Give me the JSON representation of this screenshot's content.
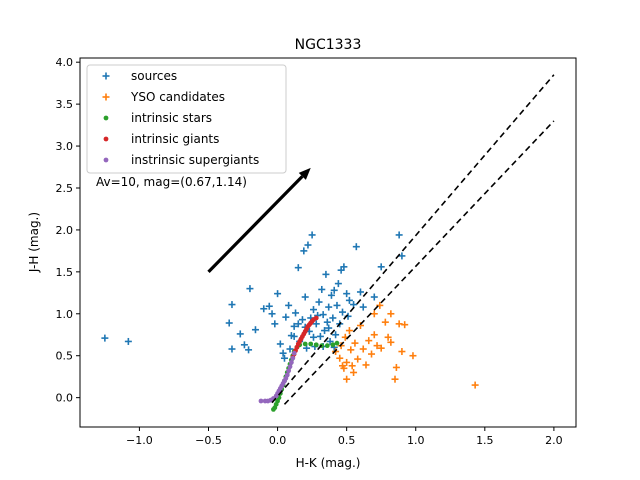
{
  "chart_data": {
    "type": "scatter",
    "title": "NGC1333",
    "xlabel": "H-K (mag.)",
    "ylabel": "J-H (mag.)",
    "xlim": [
      -1.43,
      2.16
    ],
    "ylim": [
      -0.35,
      4.05
    ],
    "xticks": [
      -1.0,
      -0.5,
      0.0,
      0.5,
      1.0,
      1.5,
      2.0
    ],
    "xtick_labels": [
      "−1.0",
      "−0.5",
      "0.0",
      "0.5",
      "1.0",
      "1.5",
      "2.0"
    ],
    "yticks": [
      0.0,
      0.5,
      1.0,
      1.5,
      2.0,
      2.5,
      3.0,
      3.5,
      4.0
    ],
    "ytick_labels": [
      "0.0",
      "0.5",
      "1.0",
      "1.5",
      "2.0",
      "2.5",
      "3.0",
      "3.5",
      "4.0"
    ],
    "grid": false,
    "legend_position": "top-left",
    "annotation": "Av=10, mag=(0.67,1.14)",
    "arrow": {
      "from": [
        -0.5,
        1.5
      ],
      "to": [
        0.24,
        2.74
      ],
      "color": "#000000"
    },
    "reddening_lines": [
      {
        "from": [
          -0.04,
          -0.06
        ],
        "to": [
          2.0,
          3.85
        ],
        "style": "dashed",
        "color": "#000000"
      },
      {
        "from": [
          0.05,
          -0.08
        ],
        "to": [
          2.0,
          3.3
        ],
        "style": "dashed",
        "color": "#000000"
      }
    ],
    "series": [
      {
        "name": "sources",
        "marker": "plus",
        "color": "#1f77b4",
        "points": [
          [
            -1.25,
            0.71
          ],
          [
            -1.08,
            0.67
          ],
          [
            -0.35,
            0.89
          ],
          [
            -0.33,
            1.11
          ],
          [
            -0.33,
            0.58
          ],
          [
            -0.27,
            0.76
          ],
          [
            -0.24,
            0.63
          ],
          [
            -0.21,
            0.57
          ],
          [
            -0.2,
            1.3
          ],
          [
            -0.16,
            0.81
          ],
          [
            -0.1,
            1.06
          ],
          [
            -0.06,
            1.09
          ],
          [
            -0.04,
            1.0
          ],
          [
            -0.02,
            0.88
          ],
          [
            0.0,
            1.24
          ],
          [
            0.02,
            0.64
          ],
          [
            0.04,
            0.53
          ],
          [
            0.06,
            0.96
          ],
          [
            0.08,
            1.1
          ],
          [
            0.1,
            0.74
          ],
          [
            0.12,
            0.85
          ],
          [
            0.13,
            1.01
          ],
          [
            0.15,
            1.55
          ],
          [
            0.16,
            0.67
          ],
          [
            0.18,
            0.93
          ],
          [
            0.19,
            1.75
          ],
          [
            0.2,
            1.2
          ],
          [
            0.21,
            0.59
          ],
          [
            0.22,
            1.82
          ],
          [
            0.23,
            0.79
          ],
          [
            0.24,
            0.95
          ],
          [
            0.25,
            1.94
          ],
          [
            0.26,
            1.05
          ],
          [
            0.27,
            0.61
          ],
          [
            0.28,
            0.88
          ],
          [
            0.3,
            1.14
          ],
          [
            0.31,
            0.73
          ],
          [
            0.32,
            1.29
          ],
          [
            0.33,
            0.99
          ],
          [
            0.34,
            0.8
          ],
          [
            0.35,
            1.47
          ],
          [
            0.36,
            0.9
          ],
          [
            0.37,
            1.08
          ],
          [
            0.38,
            0.67
          ],
          [
            0.39,
            1.22
          ],
          [
            0.4,
            0.95
          ],
          [
            0.41,
            1.28
          ],
          [
            0.42,
            0.75
          ],
          [
            0.43,
            1.1
          ],
          [
            0.44,
            1.36
          ],
          [
            0.45,
            0.88
          ],
          [
            0.46,
            1.52
          ],
          [
            0.47,
            1.02
          ],
          [
            0.48,
            1.56
          ],
          [
            0.5,
            1.24
          ],
          [
            0.51,
            0.97
          ],
          [
            0.52,
            1.16
          ],
          [
            0.55,
            1.11
          ],
          [
            0.57,
            1.8
          ],
          [
            0.6,
            1.26
          ],
          [
            0.62,
            1.08
          ],
          [
            0.7,
            1.2
          ],
          [
            0.75,
            1.56
          ],
          [
            0.88,
            1.94
          ],
          [
            0.9,
            1.69
          ],
          [
            0.05,
            0.47
          ],
          [
            0.12,
            0.73
          ],
          [
            0.2,
            0.84
          ],
          [
            0.26,
            0.72
          ],
          [
            0.29,
            0.98
          ],
          [
            0.33,
            0.61
          ],
          [
            0.37,
            0.83
          ],
          [
            0.41,
            0.6
          ],
          [
            0.15,
            0.88
          ],
          [
            0.09,
            0.58
          ]
        ]
      },
      {
        "name": "YSO candidates",
        "marker": "plus",
        "color": "#ff7f0e",
        "points": [
          [
            0.42,
            0.55
          ],
          [
            0.45,
            0.47
          ],
          [
            0.46,
            0.62
          ],
          [
            0.48,
            0.35
          ],
          [
            0.49,
            0.72
          ],
          [
            0.5,
            0.22
          ],
          [
            0.5,
            0.42
          ],
          [
            0.52,
            0.8
          ],
          [
            0.53,
            0.57
          ],
          [
            0.55,
            0.3
          ],
          [
            0.56,
            0.65
          ],
          [
            0.58,
            0.46
          ],
          [
            0.6,
            0.86
          ],
          [
            0.62,
            0.58
          ],
          [
            0.64,
            0.39
          ],
          [
            0.66,
            0.68
          ],
          [
            0.68,
            0.52
          ],
          [
            0.7,
            0.75
          ],
          [
            0.72,
            0.62
          ],
          [
            0.75,
            0.59
          ],
          [
            0.78,
            0.9
          ],
          [
            0.8,
            0.72
          ],
          [
            0.82,
            0.66
          ],
          [
            0.85,
            0.22
          ],
          [
            0.86,
            0.36
          ],
          [
            0.88,
            0.88
          ],
          [
            0.9,
            0.55
          ],
          [
            0.92,
            0.87
          ],
          [
            0.98,
            0.5
          ],
          [
            1.43,
            0.15
          ],
          [
            0.74,
            1.1
          ],
          [
            0.7,
            1.0
          ],
          [
            0.82,
            1.0
          ],
          [
            0.47,
            0.38
          ],
          [
            0.54,
            0.38
          ]
        ]
      },
      {
        "name": "intrinsic stars",
        "marker": "dot",
        "color": "#2ca02c",
        "points": [
          [
            -0.03,
            -0.14
          ],
          [
            -0.02,
            -0.12
          ],
          [
            -0.01,
            -0.08
          ],
          [
            0.0,
            -0.04
          ],
          [
            0.01,
            0.0
          ],
          [
            0.02,
            0.05
          ],
          [
            0.03,
            0.1
          ],
          [
            0.04,
            0.15
          ],
          [
            0.05,
            0.2
          ],
          [
            0.06,
            0.25
          ],
          [
            0.07,
            0.3
          ],
          [
            0.08,
            0.35
          ],
          [
            0.09,
            0.4
          ],
          [
            0.1,
            0.45
          ],
          [
            0.11,
            0.5
          ],
          [
            0.12,
            0.55
          ],
          [
            0.14,
            0.6
          ],
          [
            0.16,
            0.63
          ],
          [
            0.2,
            0.64
          ],
          [
            0.24,
            0.64
          ],
          [
            0.28,
            0.63
          ],
          [
            0.32,
            0.62
          ],
          [
            0.36,
            0.62
          ],
          [
            0.4,
            0.63
          ],
          [
            0.43,
            0.65
          ]
        ]
      },
      {
        "name": "intrinsic giants",
        "marker": "dot",
        "color": "#d62728",
        "points": [
          [
            0.11,
            0.48
          ],
          [
            0.12,
            0.52
          ],
          [
            0.13,
            0.56
          ],
          [
            0.14,
            0.6
          ],
          [
            0.15,
            0.64
          ],
          [
            0.16,
            0.67
          ],
          [
            0.17,
            0.7
          ],
          [
            0.18,
            0.73
          ],
          [
            0.19,
            0.76
          ],
          [
            0.2,
            0.79
          ],
          [
            0.21,
            0.82
          ],
          [
            0.22,
            0.85
          ],
          [
            0.23,
            0.87
          ],
          [
            0.24,
            0.89
          ],
          [
            0.25,
            0.91
          ],
          [
            0.26,
            0.93
          ],
          [
            0.28,
            0.95
          ]
        ]
      },
      {
        "name": "instrinsic supergiants",
        "marker": "dot",
        "color": "#9467bd",
        "points": [
          [
            -0.12,
            -0.04
          ],
          [
            -0.09,
            -0.04
          ],
          [
            -0.07,
            -0.04
          ],
          [
            -0.05,
            -0.03
          ],
          [
            -0.03,
            -0.01
          ],
          [
            -0.01,
            0.02
          ],
          [
            0.0,
            0.05
          ],
          [
            0.01,
            0.08
          ],
          [
            0.02,
            0.11
          ],
          [
            0.03,
            0.14
          ],
          [
            0.04,
            0.17
          ],
          [
            0.05,
            0.2
          ],
          [
            0.06,
            0.23
          ],
          [
            0.07,
            0.27
          ],
          [
            0.08,
            0.32
          ],
          [
            0.09,
            0.37
          ],
          [
            0.1,
            0.42
          ],
          [
            0.11,
            0.47
          ],
          [
            0.12,
            0.53
          ]
        ]
      }
    ]
  }
}
